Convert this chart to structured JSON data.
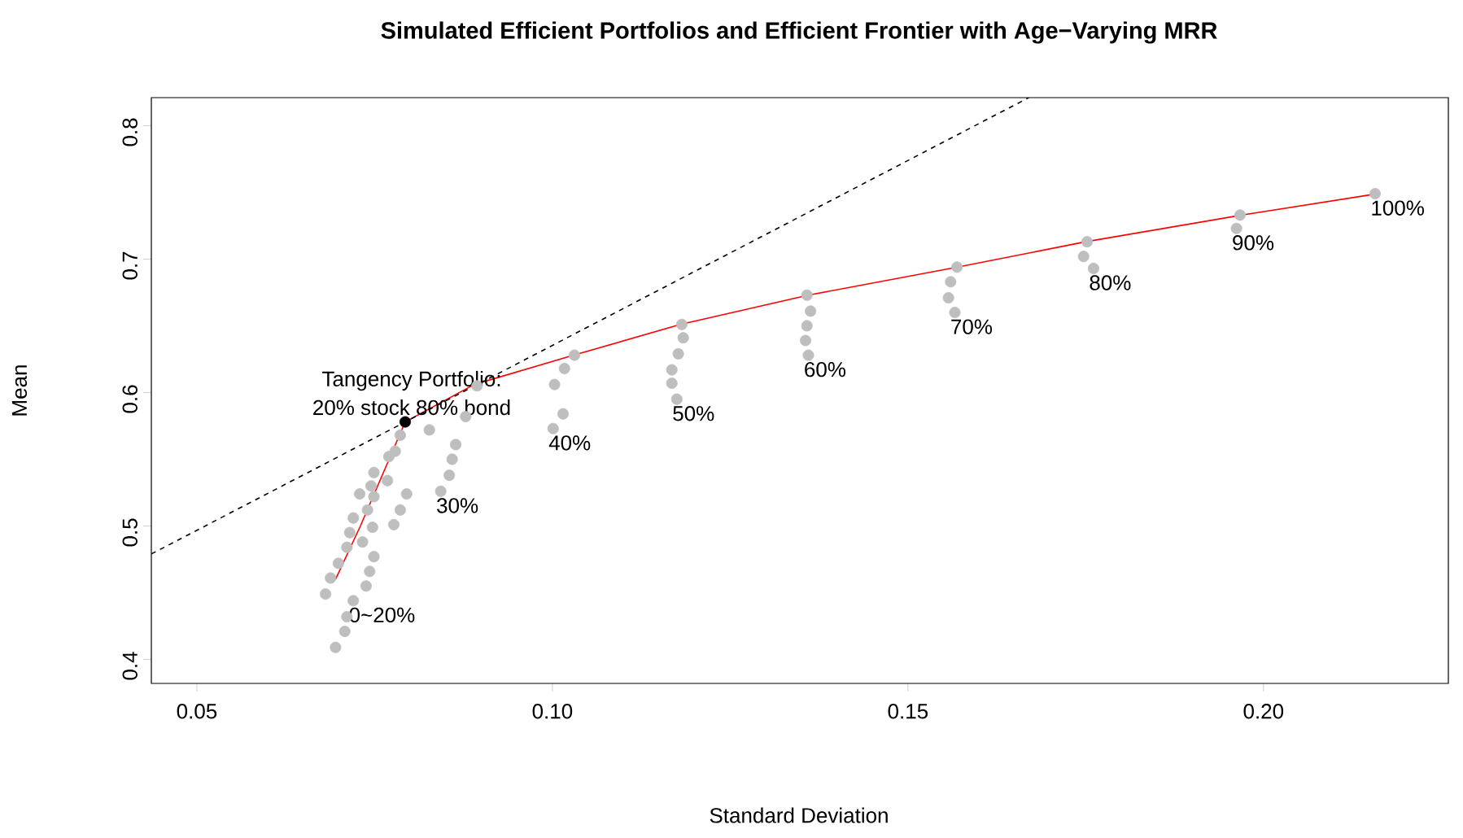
{
  "chart_data": {
    "type": "scatter",
    "title": "Simulated Efficient Portfolios and Efficient Frontier with Age−Varying MRR",
    "xlabel": "Standard Deviation",
    "ylabel": "Mean",
    "xlim": [
      0.0436,
      0.226
    ],
    "ylim": [
      0.382,
      0.821
    ],
    "xticks": [
      0.05,
      {
        "value": 0.1,
        "label": "0.10"
      },
      0.15,
      {
        "value": 0.2,
        "label": "0.20"
      }
    ],
    "yticks": [
      0.4,
      0.5,
      0.6,
      0.7,
      0.8
    ],
    "series": [
      {
        "type": "line",
        "color": "#ff0000",
        "marker": "none",
        "line_style": "solid",
        "x": [
          0.0695,
          0.073,
          0.0793,
          0.089,
          0.103,
          0.118,
          0.136,
          0.157,
          0.175,
          0.197,
          0.216
        ],
        "values": [
          0.46,
          0.5,
          0.578,
          0.606,
          0.628,
          0.651,
          0.673,
          0.694,
          0.713,
          0.733,
          0.749
        ]
      },
      {
        "type": "line",
        "color": "#000000",
        "marker": "none",
        "line_style": "dashed",
        "x": [
          0.0436,
          0.167
        ],
        "values": [
          0.479,
          0.821
        ]
      },
      {
        "color": "#bebebe",
        "marker": "circle",
        "x": [
          0.1031,
          0.1017,
          0.1003,
          0.1015,
          0.1001,
          0.0894,
          0.0878,
          0.0827,
          0.0864,
          0.0859,
          0.0855,
          0.0843,
          0.0786,
          0.0779,
          0.077,
          0.0749,
          0.0768,
          0.0745,
          0.0729,
          0.0749,
          0.0795,
          0.074,
          0.0786,
          0.072,
          0.0777,
          0.0747,
          0.0715,
          0.0711,
          0.0733,
          0.0749,
          0.0699,
          0.0743,
          0.0688,
          0.0738,
          0.0681,
          0.072,
          0.0711,
          0.0708,
          0.0695,
          0.1182,
          0.1184,
          0.1177,
          0.1168,
          0.1168,
          0.1175,
          0.1358,
          0.1363,
          0.1358,
          0.1356,
          0.136,
          0.1569,
          0.156,
          0.1557,
          0.1566,
          0.1752,
          0.1747,
          0.1761,
          0.1967,
          0.1962,
          0.2157
        ],
        "values": [
          0.628,
          0.618,
          0.606,
          0.584,
          0.573,
          0.605,
          0.582,
          0.572,
          0.561,
          0.55,
          0.538,
          0.526,
          0.568,
          0.556,
          0.552,
          0.54,
          0.534,
          0.53,
          0.524,
          0.522,
          0.524,
          0.512,
          0.512,
          0.506,
          0.501,
          0.499,
          0.495,
          0.484,
          0.488,
          0.477,
          0.472,
          0.466,
          0.461,
          0.455,
          0.449,
          0.444,
          0.432,
          0.421,
          0.409,
          0.651,
          0.641,
          0.629,
          0.617,
          0.607,
          0.595,
          0.673,
          0.661,
          0.65,
          0.639,
          0.628,
          0.694,
          0.683,
          0.671,
          0.66,
          0.713,
          0.702,
          0.693,
          0.733,
          0.723,
          0.749
        ]
      },
      {
        "color": "#000000",
        "marker": "circle",
        "x": [
          0.0793
        ],
        "values": [
          0.578
        ]
      }
    ],
    "annotations": [
      {
        "text": "Tangency Portfolio:",
        "x": 0.0793,
        "y": 0.578
      },
      {
        "text": "20% stock 80% bond",
        "x": 0.0793,
        "y": 0.578
      },
      {
        "text": "0~20%",
        "x": 0.072,
        "y": 0.444
      },
      {
        "text": "30%",
        "x": 0.0843,
        "y": 0.526
      },
      {
        "text": "40%",
        "x": 0.1001,
        "y": 0.573
      },
      {
        "text": "50%",
        "x": 0.1175,
        "y": 0.595
      },
      {
        "text": "60%",
        "x": 0.136,
        "y": 0.628
      },
      {
        "text": "70%",
        "x": 0.1566,
        "y": 0.66
      },
      {
        "text": "80%",
        "x": 0.1761,
        "y": 0.693
      },
      {
        "text": "90%",
        "x": 0.1962,
        "y": 0.723
      },
      {
        "text": "100%",
        "x": 0.2157,
        "y": 0.749
      }
    ]
  }
}
